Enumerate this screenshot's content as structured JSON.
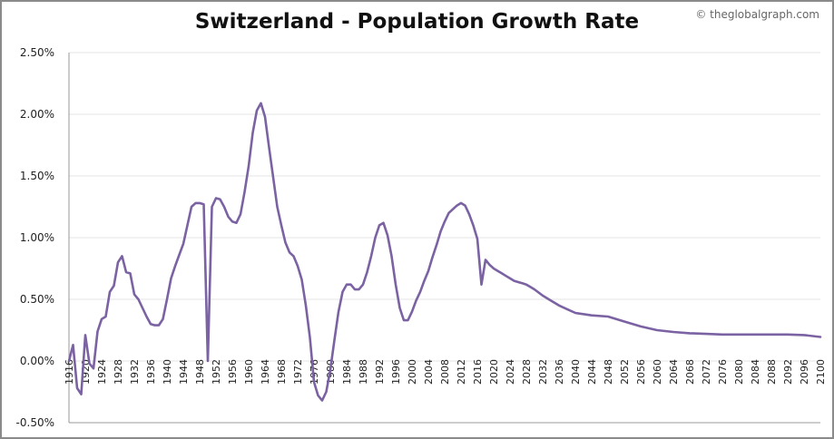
{
  "header": {
    "title": "Switzerland - Population Growth Rate",
    "credit": "© theglobalgraph.com"
  },
  "chart_data": {
    "type": "line",
    "title": "Switzerland - Population Growth Rate",
    "xlabel": "",
    "ylabel": "",
    "xlim": [
      1916,
      2100
    ],
    "ylim": [
      -0.5,
      2.5
    ],
    "y_ticks": [
      -0.5,
      0.0,
      0.5,
      1.0,
      1.5,
      2.0,
      2.5
    ],
    "y_tick_labels": [
      "-0.50%",
      "0.00%",
      "0.50%",
      "1.00%",
      "1.50%",
      "2.00%",
      "2.50%"
    ],
    "x_tick_labels": [
      "1916",
      "1920",
      "1924",
      "1928",
      "1932",
      "1936",
      "1940",
      "1944",
      "1948",
      "1952",
      "1956",
      "1960",
      "1964",
      "1968",
      "1972",
      "1976",
      "1980",
      "1984",
      "1988",
      "1992",
      "1996",
      "2000",
      "2004",
      "2008",
      "2012",
      "2016",
      "2020",
      "2024",
      "2028",
      "2032",
      "2036",
      "2040",
      "2044",
      "2048",
      "2052",
      "2056",
      "2060",
      "2064",
      "2068",
      "2072",
      "2076",
      "2080",
      "2084",
      "2088",
      "2092",
      "2096",
      "2100"
    ],
    "grid": true,
    "line_color": "#7b62a3",
    "series": [
      {
        "x": [
          1916,
          1917,
          1918,
          1919,
          1920,
          1921,
          1922,
          1923,
          1924,
          1925,
          1926,
          1927,
          1928,
          1929,
          1930,
          1931,
          1932,
          1933,
          1934,
          1935,
          1936,
          1937,
          1938,
          1939,
          1940,
          1941,
          1942,
          1943,
          1944,
          1945,
          1946,
          1947,
          1948,
          1949,
          1950,
          1951,
          1952,
          1953,
          1954,
          1955,
          1956,
          1957,
          1958,
          1959,
          1960,
          1961,
          1962,
          1963,
          1964,
          1965,
          1966,
          1967,
          1968,
          1969,
          1970,
          1971,
          1972,
          1973,
          1974,
          1975,
          1976,
          1977,
          1978,
          1979,
          1980,
          1981,
          1982,
          1983,
          1984,
          1985,
          1986,
          1987,
          1988,
          1989,
          1990,
          1991,
          1992,
          1993,
          1994,
          1995,
          1996,
          1997,
          1998,
          1999,
          2000,
          2001,
          2002,
          2003,
          2004,
          2005,
          2006,
          2007,
          2008,
          2009,
          2010,
          2011,
          2012,
          2013,
          2014,
          2015,
          2016,
          2017,
          2018,
          2019,
          2020,
          2021,
          2022,
          2023,
          2024,
          2025,
          2026,
          2027,
          2028,
          2029,
          2030,
          2032,
          2034,
          2036,
          2038,
          2040,
          2044,
          2048,
          2052,
          2056,
          2060,
          2064,
          2068,
          2072,
          2076,
          2080,
          2084,
          2088,
          2092,
          2096,
          2100
        ],
        "values": [
          0.0,
          0.13,
          -0.22,
          -0.27,
          0.21,
          -0.02,
          -0.06,
          0.24,
          0.34,
          0.36,
          0.56,
          0.61,
          0.8,
          0.85,
          0.72,
          0.71,
          0.54,
          0.5,
          0.43,
          0.36,
          0.3,
          0.29,
          0.29,
          0.34,
          0.5,
          0.67,
          0.77,
          0.86,
          0.95,
          1.1,
          1.25,
          1.28,
          1.28,
          1.27,
          0.0,
          1.25,
          1.32,
          1.31,
          1.25,
          1.17,
          1.13,
          1.12,
          1.19,
          1.37,
          1.58,
          1.85,
          2.03,
          2.09,
          1.98,
          1.73,
          1.49,
          1.25,
          1.1,
          0.96,
          0.88,
          0.85,
          0.77,
          0.66,
          0.45,
          0.19,
          -0.17,
          -0.28,
          -0.32,
          -0.25,
          -0.07,
          0.17,
          0.4,
          0.56,
          0.62,
          0.62,
          0.58,
          0.58,
          0.62,
          0.72,
          0.85,
          1.0,
          1.1,
          1.12,
          1.02,
          0.85,
          0.62,
          0.43,
          0.33,
          0.33,
          0.4,
          0.49,
          0.56,
          0.65,
          0.73,
          0.84,
          0.94,
          1.05,
          1.13,
          1.2,
          1.23,
          1.26,
          1.28,
          1.26,
          1.19,
          1.1,
          0.99,
          0.62,
          0.82,
          0.78,
          0.75,
          0.73,
          0.71,
          0.69,
          0.67,
          0.65,
          0.64,
          0.63,
          0.62,
          0.6,
          0.58,
          0.53,
          0.49,
          0.45,
          0.42,
          0.39,
          0.37,
          0.36,
          0.32,
          0.28,
          0.25,
          0.235,
          0.225,
          0.22,
          0.215,
          0.215,
          0.215,
          0.215,
          0.215,
          0.21,
          0.195
        ]
      }
    ]
  }
}
